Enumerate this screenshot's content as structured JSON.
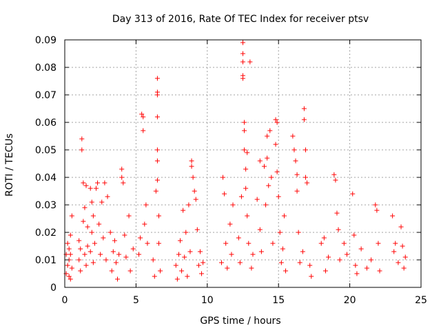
{
  "chart_data": {
    "type": "scatter",
    "title": "Day 313 of 2016, Rate Of TEC Index for receiver ptsv",
    "xlabel": "GPS time / hours",
    "ylabel": "ROTI / TECUs",
    "xlim": [
      0,
      25
    ],
    "ylim": [
      0,
      0.09
    ],
    "xticks": [
      "0",
      "5",
      "10",
      "15",
      "20",
      "25"
    ],
    "yticks": [
      "0",
      "0.01",
      "0.02",
      "0.03",
      "0.04",
      "0.05",
      "0.06",
      "0.07",
      "0.08",
      "0.09"
    ],
    "grid": true,
    "marker": "+",
    "color": "#ff0000",
    "points": [
      [
        0.1,
        0.005
      ],
      [
        0.1,
        0.012
      ],
      [
        0.2,
        0.016
      ],
      [
        0.2,
        0.008
      ],
      [
        0.3,
        0.01
      ],
      [
        0.3,
        0.004
      ],
      [
        0.4,
        0.019
      ],
      [
        0.4,
        0.012
      ],
      [
        0.5,
        0.026
      ],
      [
        0.5,
        0.007
      ],
      [
        0.4,
        0.003
      ],
      [
        0.3,
        0.014
      ],
      [
        1.0,
        0.01
      ],
      [
        1.0,
        0.017
      ],
      [
        1.1,
        0.006
      ],
      [
        1.1,
        0.014
      ],
      [
        1.2,
        0.05
      ],
      [
        1.2,
        0.054
      ],
      [
        1.3,
        0.038
      ],
      [
        1.3,
        0.024
      ],
      [
        1.4,
        0.012
      ],
      [
        1.4,
        0.029
      ],
      [
        1.5,
        0.037
      ],
      [
        1.5,
        0.008
      ],
      [
        1.6,
        0.022
      ],
      [
        1.6,
        0.015
      ],
      [
        1.8,
        0.036
      ],
      [
        1.8,
        0.013
      ],
      [
        1.9,
        0.031
      ],
      [
        1.9,
        0.02
      ],
      [
        2.0,
        0.009
      ],
      [
        2.0,
        0.026
      ],
      [
        2.1,
        0.016
      ],
      [
        2.2,
        0.036
      ],
      [
        2.3,
        0.038
      ],
      [
        2.4,
        0.023
      ],
      [
        2.5,
        0.012
      ],
      [
        2.6,
        0.031
      ],
      [
        2.7,
        0.018
      ],
      [
        2.8,
        0.038
      ],
      [
        2.9,
        0.01
      ],
      [
        3.0,
        0.033
      ],
      [
        3.2,
        0.02
      ],
      [
        3.3,
        0.006
      ],
      [
        3.4,
        0.013
      ],
      [
        3.5,
        0.017
      ],
      [
        3.6,
        0.009
      ],
      [
        3.7,
        0.003
      ],
      [
        3.8,
        0.012
      ],
      [
        4.0,
        0.043
      ],
      [
        4.0,
        0.04
      ],
      [
        4.1,
        0.038
      ],
      [
        4.2,
        0.019
      ],
      [
        4.3,
        0.011
      ],
      [
        4.5,
        0.026
      ],
      [
        4.6,
        0.006
      ],
      [
        4.8,
        0.014
      ],
      [
        5.2,
        0.012
      ],
      [
        5.3,
        0.018
      ],
      [
        5.4,
        0.063
      ],
      [
        5.5,
        0.062
      ],
      [
        5.5,
        0.057
      ],
      [
        5.6,
        0.023
      ],
      [
        5.7,
        0.03
      ],
      [
        5.8,
        0.016
      ],
      [
        6.2,
        0.01
      ],
      [
        6.3,
        0.004
      ],
      [
        6.4,
        0.035
      ],
      [
        6.5,
        0.076
      ],
      [
        6.5,
        0.071
      ],
      [
        6.5,
        0.07
      ],
      [
        6.5,
        0.062
      ],
      [
        6.5,
        0.05
      ],
      [
        6.5,
        0.046
      ],
      [
        6.5,
        0.039
      ],
      [
        6.6,
        0.026
      ],
      [
        6.6,
        0.016
      ],
      [
        6.7,
        0.006
      ],
      [
        7.8,
        0.008
      ],
      [
        7.9,
        0.003
      ],
      [
        8.0,
        0.012
      ],
      [
        8.1,
        0.017
      ],
      [
        8.2,
        0.006
      ],
      [
        8.3,
        0.028
      ],
      [
        8.4,
        0.011
      ],
      [
        8.5,
        0.02
      ],
      [
        8.6,
        0.004
      ],
      [
        8.7,
        0.03
      ],
      [
        8.8,
        0.013
      ],
      [
        8.9,
        0.046
      ],
      [
        8.9,
        0.044
      ],
      [
        9.0,
        0.04
      ],
      [
        9.1,
        0.035
      ],
      [
        9.2,
        0.032
      ],
      [
        9.3,
        0.021
      ],
      [
        9.4,
        0.008
      ],
      [
        9.5,
        0.013
      ],
      [
        9.6,
        0.005
      ],
      [
        9.7,
        0.009
      ],
      [
        11.0,
        0.009
      ],
      [
        11.1,
        0.04
      ],
      [
        11.2,
        0.034
      ],
      [
        11.3,
        0.016
      ],
      [
        11.4,
        0.007
      ],
      [
        11.6,
        0.023
      ],
      [
        11.7,
        0.012
      ],
      [
        11.8,
        0.03
      ],
      [
        12.2,
        0.018
      ],
      [
        12.3,
        0.009
      ],
      [
        12.4,
        0.033
      ],
      [
        12.5,
        0.089
      ],
      [
        12.5,
        0.085
      ],
      [
        12.5,
        0.082
      ],
      [
        12.5,
        0.077
      ],
      [
        12.5,
        0.076
      ],
      [
        12.6,
        0.06
      ],
      [
        12.6,
        0.057
      ],
      [
        12.6,
        0.05
      ],
      [
        12.7,
        0.043
      ],
      [
        12.7,
        0.036
      ],
      [
        12.8,
        0.049
      ],
      [
        12.8,
        0.026
      ],
      [
        12.9,
        0.016
      ],
      [
        13.0,
        0.082
      ],
      [
        13.1,
        0.007
      ],
      [
        13.2,
        0.012
      ],
      [
        13.5,
        0.032
      ],
      [
        13.7,
        0.046
      ],
      [
        13.7,
        0.021
      ],
      [
        13.8,
        0.013
      ],
      [
        14.0,
        0.044
      ],
      [
        14.1,
        0.03
      ],
      [
        14.2,
        0.055
      ],
      [
        14.2,
        0.047
      ],
      [
        14.3,
        0.037
      ],
      [
        14.4,
        0.057
      ],
      [
        14.5,
        0.04
      ],
      [
        14.6,
        0.016
      ],
      [
        14.8,
        0.061
      ],
      [
        14.8,
        0.052
      ],
      [
        14.9,
        0.06
      ],
      [
        14.9,
        0.042
      ],
      [
        15.0,
        0.033
      ],
      [
        15.1,
        0.02
      ],
      [
        15.2,
        0.009
      ],
      [
        15.3,
        0.014
      ],
      [
        15.4,
        0.026
      ],
      [
        15.5,
        0.006
      ],
      [
        16.0,
        0.055
      ],
      [
        16.1,
        0.05
      ],
      [
        16.2,
        0.046
      ],
      [
        16.3,
        0.041
      ],
      [
        16.3,
        0.035
      ],
      [
        16.4,
        0.02
      ],
      [
        16.5,
        0.009
      ],
      [
        16.7,
        0.013
      ],
      [
        16.8,
        0.065
      ],
      [
        16.8,
        0.061
      ],
      [
        16.9,
        0.05
      ],
      [
        16.9,
        0.04
      ],
      [
        17.0,
        0.038
      ],
      [
        17.2,
        0.008
      ],
      [
        17.3,
        0.004
      ],
      [
        18.0,
        0.016
      ],
      [
        18.2,
        0.018
      ],
      [
        18.3,
        0.006
      ],
      [
        18.5,
        0.011
      ],
      [
        18.9,
        0.041
      ],
      [
        19.0,
        0.039
      ],
      [
        19.1,
        0.027
      ],
      [
        19.2,
        0.021
      ],
      [
        19.3,
        0.01
      ],
      [
        19.6,
        0.016
      ],
      [
        19.8,
        0.012
      ],
      [
        20.2,
        0.034
      ],
      [
        20.3,
        0.019
      ],
      [
        20.4,
        0.008
      ],
      [
        20.5,
        0.005
      ],
      [
        20.8,
        0.014
      ],
      [
        21.2,
        0.007
      ],
      [
        21.5,
        0.01
      ],
      [
        21.8,
        0.03
      ],
      [
        21.9,
        0.028
      ],
      [
        22.0,
        0.016
      ],
      [
        22.1,
        0.006
      ],
      [
        23.0,
        0.026
      ],
      [
        23.1,
        0.013
      ],
      [
        23.2,
        0.016
      ],
      [
        23.4,
        0.009
      ],
      [
        23.6,
        0.022
      ],
      [
        23.7,
        0.015
      ],
      [
        23.8,
        0.007
      ],
      [
        23.9,
        0.011
      ]
    ]
  }
}
